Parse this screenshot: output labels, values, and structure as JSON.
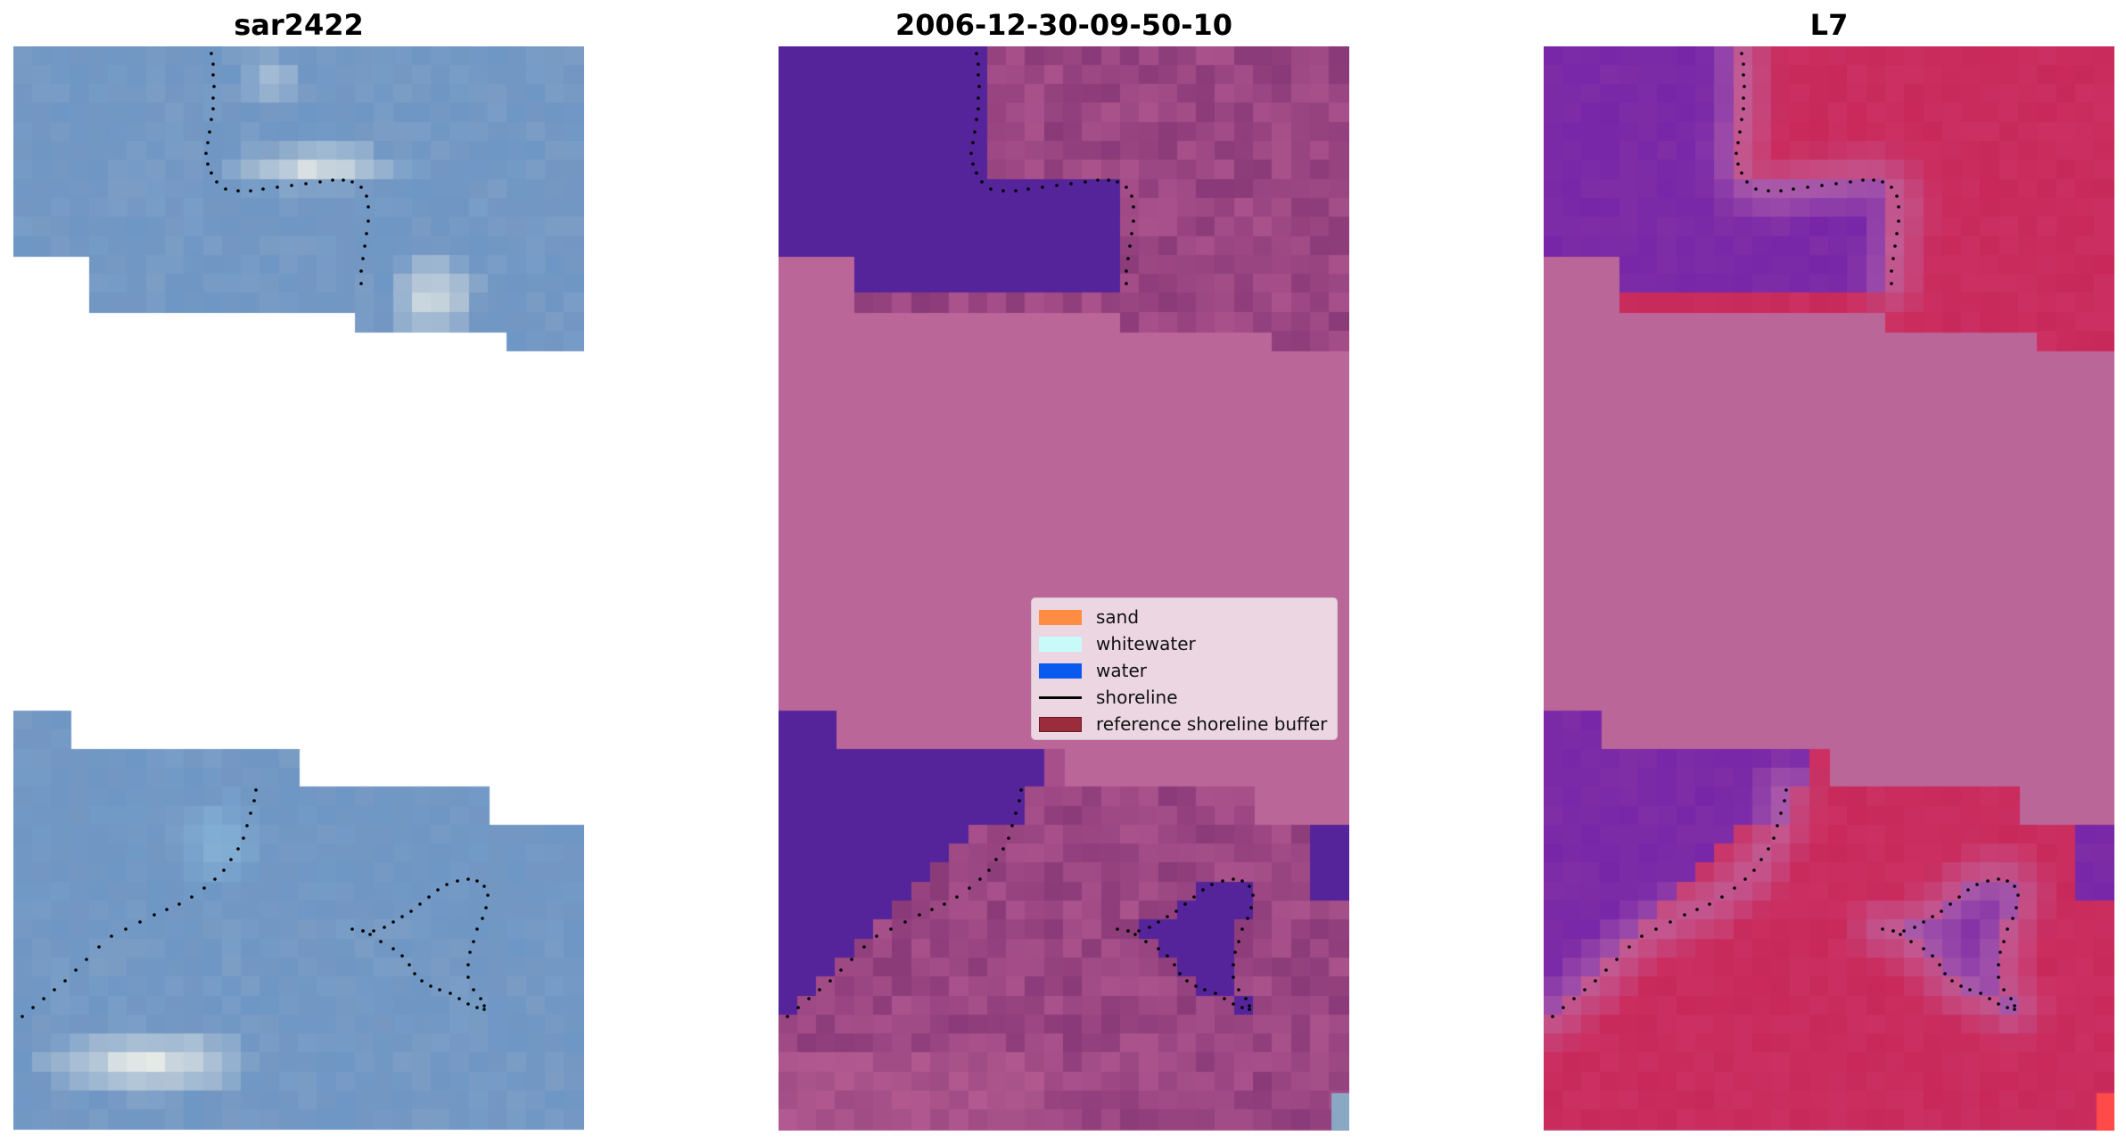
{
  "panels": [
    {
      "title": "sar2422"
    },
    {
      "title": "2006-12-30-09-50-10"
    },
    {
      "title": "L7"
    }
  ],
  "legend": {
    "items": [
      {
        "label": "sand",
        "kind": "patch",
        "color": "#ff8c42"
      },
      {
        "label": "whitewater",
        "kind": "patch",
        "color": "#c8fafa"
      },
      {
        "label": "water",
        "kind": "patch",
        "color": "#0a5af0"
      },
      {
        "label": "shoreline",
        "kind": "line",
        "color": "#000000"
      },
      {
        "label": "reference shoreline buffer",
        "kind": "patch",
        "color": "#9a2c3c"
      }
    ]
  },
  "colors": {
    "nodata_fill": "#bb6698",
    "water_class": "#55249a",
    "rgb_base": "#6f97c5",
    "l7_water": "#7f2ea6",
    "l7_land": "#c8285a"
  }
}
